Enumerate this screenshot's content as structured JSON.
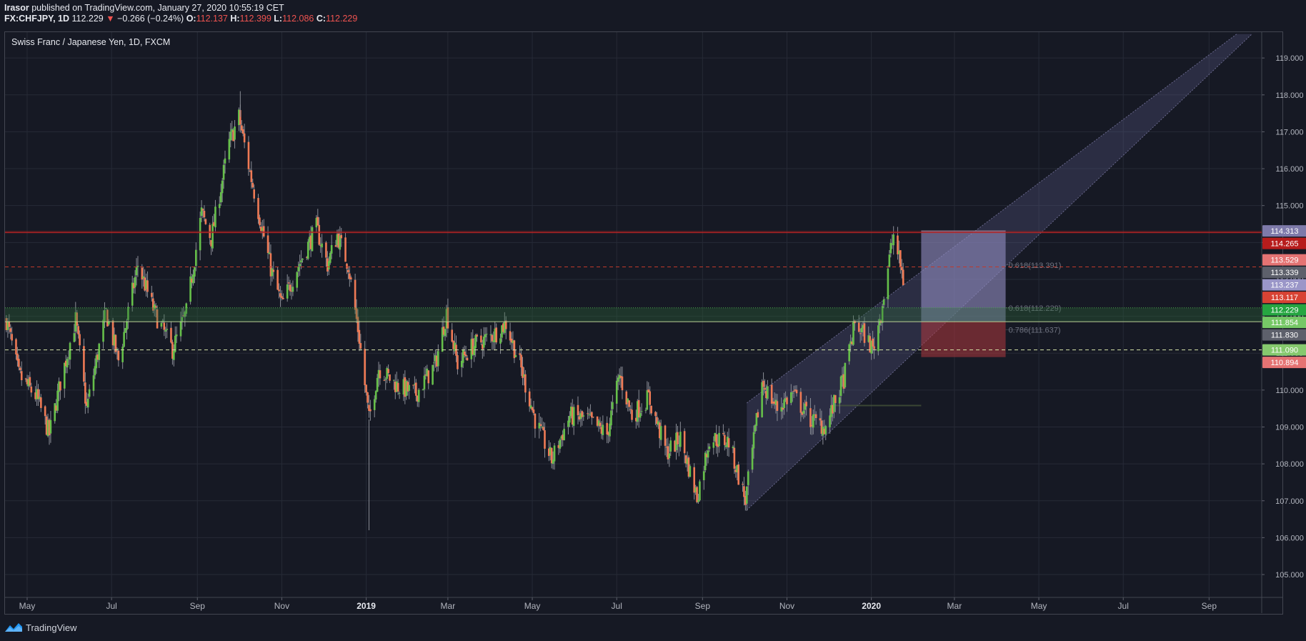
{
  "header": {
    "publisher": "Irasor",
    "published_text": " published on TradingView.com, January 27, 2020 10:55:19 CET",
    "symbol": "FX:CHFJPY, 1D",
    "last": "112.229",
    "change": "−0.266 (−0.24%)",
    "o_label": "O:",
    "o": "112.137",
    "h_label": "H:",
    "h": "112.399",
    "l_label": "L:",
    "l": "112.086",
    "c_label": "C:",
    "c": "112.229"
  },
  "chart_title": "Swiss Franc / Japanese Yen, 1D, FXCM",
  "footer": {
    "brand": "TradingView"
  },
  "colors": {
    "background": "#161924",
    "grid": "#262a36",
    "up": "#66c04a",
    "down": "#ef7a55",
    "axis_text": "#b2b5be",
    "resistance": "#c62828",
    "channel": "#5b5b85"
  },
  "chart_data": {
    "type": "candlestick",
    "title": "Swiss Franc / Japanese Yen, 1D, FXCM",
    "ylim": [
      104.4,
      119.7
    ],
    "x_range": [
      "2018-04-15",
      "2020-10-08"
    ],
    "y_ticks": [
      "105.000",
      "106.000",
      "107.000",
      "108.000",
      "109.000",
      "110.000",
      "111.000",
      "112.000",
      "113.000",
      "114.000",
      "115.000",
      "116.000",
      "117.000",
      "118.000",
      "119.000"
    ],
    "x_ticks": [
      {
        "label": "May",
        "date": "2018-05-01",
        "bold": false
      },
      {
        "label": "Jul",
        "date": "2018-07-01",
        "bold": false
      },
      {
        "label": "Sep",
        "date": "2018-09-01",
        "bold": false
      },
      {
        "label": "Nov",
        "date": "2018-11-01",
        "bold": false
      },
      {
        "label": "2019",
        "date": "2019-01-01",
        "bold": true
      },
      {
        "label": "Mar",
        "date": "2019-03-01",
        "bold": false
      },
      {
        "label": "May",
        "date": "2019-05-01",
        "bold": false
      },
      {
        "label": "Jul",
        "date": "2019-07-01",
        "bold": false
      },
      {
        "label": "Sep",
        "date": "2019-09-01",
        "bold": false
      },
      {
        "label": "Nov",
        "date": "2019-11-01",
        "bold": false
      },
      {
        "label": "2020",
        "date": "2020-01-01",
        "bold": true
      },
      {
        "label": "Mar",
        "date": "2020-03-01",
        "bold": false
      },
      {
        "label": "May",
        "date": "2020-05-01",
        "bold": false
      },
      {
        "label": "Jul",
        "date": "2020-07-01",
        "bold": false
      },
      {
        "label": "Sep",
        "date": "2020-09-01",
        "bold": false
      }
    ],
    "price_path": [
      [
        "2018-04-16",
        111.9
      ],
      [
        "2018-04-25",
        110.4
      ],
      [
        "2018-05-08",
        109.8
      ],
      [
        "2018-05-17",
        108.8
      ],
      [
        "2018-05-25",
        110.2
      ],
      [
        "2018-06-05",
        111.9
      ],
      [
        "2018-06-13",
        109.5
      ],
      [
        "2018-06-27",
        112.1
      ],
      [
        "2018-07-06",
        110.8
      ],
      [
        "2018-07-20",
        113.4
      ],
      [
        "2018-08-01",
        112.1
      ],
      [
        "2018-08-14",
        111.1
      ],
      [
        "2018-08-24",
        112.1
      ],
      [
        "2018-09-04",
        114.8
      ],
      [
        "2018-09-11",
        114.1
      ],
      [
        "2018-09-24",
        116.7
      ],
      [
        "2018-10-01",
        117.4
      ],
      [
        "2018-10-09",
        115.9
      ],
      [
        "2018-10-24",
        113.3
      ],
      [
        "2018-11-01",
        112.3
      ],
      [
        "2018-11-12",
        113.3
      ],
      [
        "2018-11-26",
        114.4
      ],
      [
        "2018-12-04",
        113.4
      ],
      [
        "2018-12-11",
        114.2
      ],
      [
        "2018-12-19",
        113.4
      ],
      [
        "2018-12-27",
        111.4
      ],
      [
        "2019-01-03",
        109.2
      ],
      [
        "2019-01-10",
        110.6
      ],
      [
        "2019-01-24",
        110.1
      ],
      [
        "2019-02-06",
        109.9
      ],
      [
        "2019-02-20",
        110.7
      ],
      [
        "2019-02-28",
        112.1
      ],
      [
        "2019-03-08",
        110.7
      ],
      [
        "2019-03-19",
        111.2
      ],
      [
        "2019-04-03",
        111.5
      ],
      [
        "2019-04-12",
        111.8
      ],
      [
        "2019-04-22",
        110.7
      ],
      [
        "2019-05-03",
        109.2
      ],
      [
        "2019-05-15",
        108.1
      ],
      [
        "2019-05-28",
        109.3
      ],
      [
        "2019-06-10",
        109.2
      ],
      [
        "2019-06-24",
        108.8
      ],
      [
        "2019-07-03",
        110.4
      ],
      [
        "2019-07-12",
        109.3
      ],
      [
        "2019-07-24",
        109.8
      ],
      [
        "2019-08-06",
        108.3
      ],
      [
        "2019-08-16",
        108.7
      ],
      [
        "2019-08-28",
        107.1
      ],
      [
        "2019-09-06",
        108.7
      ],
      [
        "2019-09-20",
        108.6
      ],
      [
        "2019-10-02",
        107.0
      ],
      [
        "2019-10-14",
        110.2
      ],
      [
        "2019-10-25",
        109.5
      ],
      [
        "2019-11-05",
        109.9
      ],
      [
        "2019-11-18",
        109.2
      ],
      [
        "2019-11-29",
        109.0
      ],
      [
        "2019-12-12",
        110.3
      ],
      [
        "2019-12-20",
        111.8
      ],
      [
        "2019-12-27",
        111.5
      ],
      [
        "2020-01-02",
        111.1
      ],
      [
        "2020-01-08",
        112.1
      ],
      [
        "2020-01-15",
        113.8
      ],
      [
        "2020-01-17",
        114.2
      ],
      [
        "2020-01-23",
        113.2
      ],
      [
        "2020-01-27",
        112.229
      ]
    ],
    "levels": [
      {
        "price": 114.313,
        "label": "114.313",
        "bg": "#7e7aaa",
        "style": "none"
      },
      {
        "price": 114.265,
        "label": "114.265",
        "bg": "#b71c1c",
        "style": "solid",
        "line": "#c62828"
      },
      {
        "price": 113.529,
        "label": "113.529",
        "bg": "#e57373",
        "style": "none"
      },
      {
        "price": 113.339,
        "label": "113.339",
        "bg": "#5d606b",
        "style": "dashed",
        "line": "#c0392b"
      },
      {
        "price": 113.237,
        "label": "113.237",
        "bg": "#9a96c8",
        "style": "none"
      },
      {
        "price": 113.117,
        "label": "113.117",
        "bg": "#d84334",
        "style": "none"
      },
      {
        "price": 112.229,
        "label": "112.229",
        "bg": "#26a641",
        "style": "dotted",
        "line": "#4caf50"
      },
      {
        "price": 111.854,
        "label": "111.854",
        "bg": "#76c866",
        "style": "solid",
        "line": "#d8e6a8"
      },
      {
        "price": 111.83,
        "label": "111.830",
        "bg": "#5d606b",
        "style": "none"
      },
      {
        "price": 111.09,
        "label": "111.090",
        "bg": "#86c96e",
        "style": "dashed",
        "line": "#d8e6a8"
      },
      {
        "price": 110.894,
        "label": "110.894",
        "bg": "#e57373",
        "style": "none"
      }
    ],
    "fib_labels": [
      {
        "text": "0.618(113.391)",
        "price": 113.391
      },
      {
        "text": "0.618(112.229)",
        "price": 112.229
      },
      {
        "text": "0.786(111.637)",
        "price": 111.637
      }
    ],
    "channel": {
      "lower": [
        [
          "2019-10-03",
          106.75
        ],
        [
          "2020-10-02",
          119.65
        ]
      ],
      "upper": [
        [
          "2019-10-03",
          109.65
        ],
        [
          "2020-09-21",
          119.65
        ]
      ]
    },
    "position": {
      "start": "2020-02-06",
      "end": "2020-04-07",
      "target": 114.313,
      "entry": 111.854,
      "stop": 110.894
    }
  }
}
